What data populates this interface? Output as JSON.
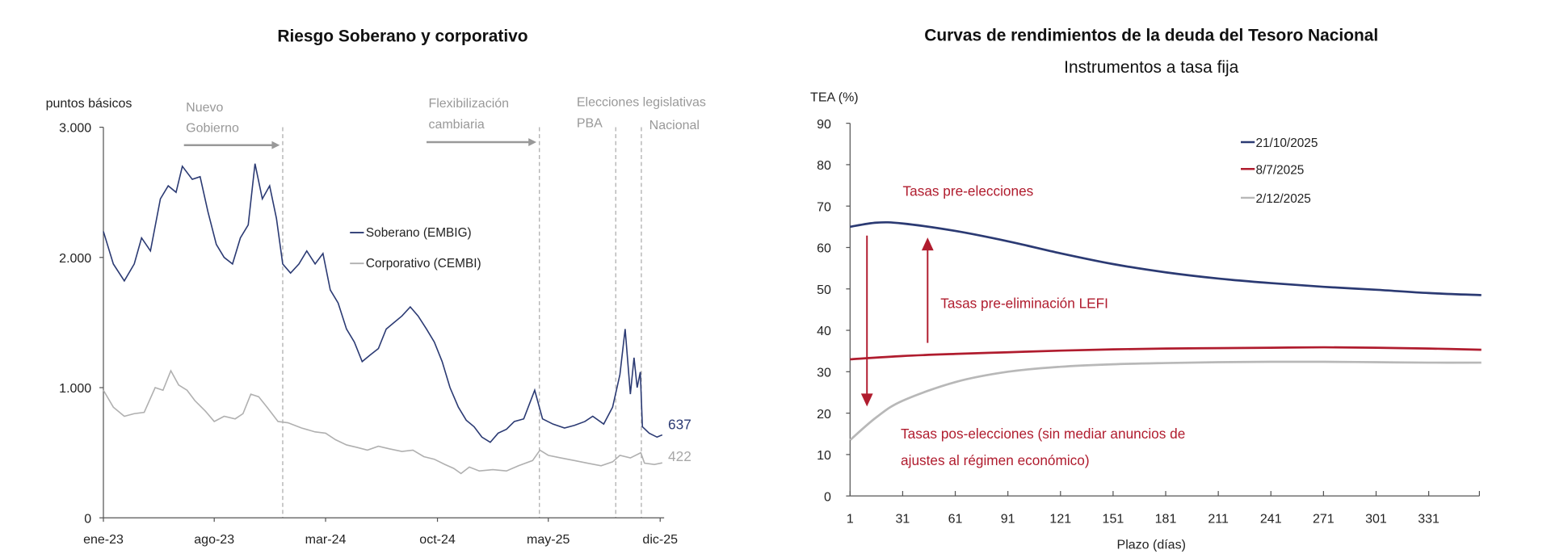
{
  "chart_data": [
    {
      "type": "line",
      "title": "Riesgo Soberano y corporativo",
      "ylabel": "puntos básicos",
      "ylim": [
        0,
        3000
      ],
      "yticks": [
        "0",
        "1.000",
        "2.000",
        "3.000"
      ],
      "ytick_values": [
        0,
        1000,
        2000,
        3000
      ],
      "xticks": [
        "ene-23",
        "ago-23",
        "mar-24",
        "oct-24",
        "may-25",
        "dic-25"
      ],
      "xtick_dates": [
        "2023-01-01",
        "2023-08-01",
        "2024-03-01",
        "2024-10-01",
        "2025-05-01",
        "2025-12-01"
      ],
      "grid": false,
      "legend": "center",
      "events": [
        {
          "lines": [
            "Nuevo",
            "Gobierno"
          ],
          "date": "2023-12-10",
          "arrow": true
        },
        {
          "lines": [
            "Flexibilización",
            "cambiaria"
          ],
          "date": "2025-04-14",
          "arrow": true
        },
        {
          "lines": [
            "Elecciones legislativas",
            "PBA"
          ],
          "date": "2025-09-07",
          "arrow": false
        },
        {
          "lines": [
            "Nacional"
          ],
          "date": "2025-10-26",
          "arrow": false
        }
      ],
      "series": [
        {
          "name": "Soberano (EMBIG)",
          "color": "#2b3a73",
          "end_label": "637",
          "points": [
            [
              "2023-01-01",
              2200
            ],
            [
              "2023-01-20",
              1950
            ],
            [
              "2023-02-10",
              1820
            ],
            [
              "2023-03-01",
              1950
            ],
            [
              "2023-03-15",
              2150
            ],
            [
              "2023-04-01",
              2050
            ],
            [
              "2023-04-20",
              2450
            ],
            [
              "2023-05-05",
              2550
            ],
            [
              "2023-05-20",
              2500
            ],
            [
              "2023-06-01",
              2700
            ],
            [
              "2023-06-20",
              2600
            ],
            [
              "2023-07-05",
              2620
            ],
            [
              "2023-07-20",
              2350
            ],
            [
              "2023-08-05",
              2100
            ],
            [
              "2023-08-20",
              2000
            ],
            [
              "2023-09-05",
              1950
            ],
            [
              "2023-09-20",
              2150
            ],
            [
              "2023-10-05",
              2250
            ],
            [
              "2023-10-18",
              2720
            ],
            [
              "2023-11-01",
              2450
            ],
            [
              "2023-11-15",
              2550
            ],
            [
              "2023-11-28",
              2300
            ],
            [
              "2023-12-10",
              1950
            ],
            [
              "2023-12-25",
              1880
            ],
            [
              "2024-01-10",
              1950
            ],
            [
              "2024-01-25",
              2050
            ],
            [
              "2024-02-10",
              1950
            ],
            [
              "2024-02-25",
              2030
            ],
            [
              "2024-03-10",
              1750
            ],
            [
              "2024-03-25",
              1650
            ],
            [
              "2024-04-10",
              1450
            ],
            [
              "2024-04-25",
              1350
            ],
            [
              "2024-05-10",
              1200
            ],
            [
              "2024-05-25",
              1250
            ],
            [
              "2024-06-10",
              1300
            ],
            [
              "2024-06-25",
              1450
            ],
            [
              "2024-07-10",
              1500
            ],
            [
              "2024-07-25",
              1550
            ],
            [
              "2024-08-10",
              1620
            ],
            [
              "2024-08-25",
              1550
            ],
            [
              "2024-09-10",
              1450
            ],
            [
              "2024-09-25",
              1350
            ],
            [
              "2024-10-10",
              1200
            ],
            [
              "2024-10-25",
              1000
            ],
            [
              "2024-11-10",
              850
            ],
            [
              "2024-11-25",
              750
            ],
            [
              "2024-12-10",
              700
            ],
            [
              "2024-12-25",
              620
            ],
            [
              "2025-01-10",
              580
            ],
            [
              "2025-01-25",
              650
            ],
            [
              "2025-02-10",
              680
            ],
            [
              "2025-02-25",
              740
            ],
            [
              "2025-03-15",
              760
            ],
            [
              "2025-04-05",
              980
            ],
            [
              "2025-04-20",
              760
            ],
            [
              "2025-05-10",
              720
            ],
            [
              "2025-06-01",
              690
            ],
            [
              "2025-06-20",
              710
            ],
            [
              "2025-07-10",
              740
            ],
            [
              "2025-07-25",
              780
            ],
            [
              "2025-08-15",
              720
            ],
            [
              "2025-09-01",
              850
            ],
            [
              "2025-09-15",
              1100
            ],
            [
              "2025-09-25",
              1450
            ],
            [
              "2025-10-05",
              950
            ],
            [
              "2025-10-12",
              1230
            ],
            [
              "2025-10-18",
              1000
            ],
            [
              "2025-10-24",
              1120
            ],
            [
              "2025-10-28",
              700
            ],
            [
              "2025-11-10",
              650
            ],
            [
              "2025-11-25",
              620
            ],
            [
              "2025-12-05",
              637
            ]
          ]
        },
        {
          "name": "Corporativo (CEMBI)",
          "color": "#b0b0b0",
          "end_label": "422",
          "points": [
            [
              "2023-01-01",
              980
            ],
            [
              "2023-01-20",
              850
            ],
            [
              "2023-02-10",
              780
            ],
            [
              "2023-03-01",
              800
            ],
            [
              "2023-03-20",
              810
            ],
            [
              "2023-04-10",
              1000
            ],
            [
              "2023-04-25",
              980
            ],
            [
              "2023-05-10",
              1130
            ],
            [
              "2023-05-25",
              1020
            ],
            [
              "2023-06-10",
              980
            ],
            [
              "2023-06-25",
              900
            ],
            [
              "2023-07-15",
              820
            ],
            [
              "2023-08-01",
              740
            ],
            [
              "2023-08-20",
              780
            ],
            [
              "2023-09-10",
              760
            ],
            [
              "2023-09-25",
              800
            ],
            [
              "2023-10-10",
              950
            ],
            [
              "2023-10-25",
              930
            ],
            [
              "2023-11-10",
              850
            ],
            [
              "2023-12-01",
              740
            ],
            [
              "2023-12-20",
              730
            ],
            [
              "2024-01-15",
              690
            ],
            [
              "2024-02-10",
              660
            ],
            [
              "2024-03-01",
              650
            ],
            [
              "2024-03-20",
              600
            ],
            [
              "2024-04-10",
              560
            ],
            [
              "2024-05-01",
              540
            ],
            [
              "2024-05-20",
              520
            ],
            [
              "2024-06-10",
              550
            ],
            [
              "2024-07-01",
              530
            ],
            [
              "2024-07-25",
              510
            ],
            [
              "2024-08-15",
              520
            ],
            [
              "2024-09-05",
              470
            ],
            [
              "2024-09-25",
              450
            ],
            [
              "2024-10-15",
              410
            ],
            [
              "2024-11-01",
              380
            ],
            [
              "2024-11-15",
              340
            ],
            [
              "2024-12-01",
              390
            ],
            [
              "2024-12-20",
              360
            ],
            [
              "2025-01-15",
              370
            ],
            [
              "2025-02-10",
              360
            ],
            [
              "2025-03-05",
              400
            ],
            [
              "2025-04-01",
              440
            ],
            [
              "2025-04-15",
              520
            ],
            [
              "2025-05-01",
              480
            ],
            [
              "2025-05-25",
              460
            ],
            [
              "2025-06-20",
              440
            ],
            [
              "2025-07-15",
              420
            ],
            [
              "2025-08-10",
              400
            ],
            [
              "2025-09-01",
              430
            ],
            [
              "2025-09-15",
              480
            ],
            [
              "2025-10-05",
              460
            ],
            [
              "2025-10-25",
              500
            ],
            [
              "2025-11-01",
              420
            ],
            [
              "2025-11-20",
              410
            ],
            [
              "2025-12-05",
              422
            ]
          ]
        }
      ]
    },
    {
      "type": "line",
      "title": "Curvas de rendimientos de la deuda del Tesoro Nacional",
      "subtitle": "Instrumentos a tasa fija",
      "ylabel": "TEA (%)",
      "xlabel": "Plazo (días)",
      "ylim": [
        0,
        90
      ],
      "xlim": [
        1,
        361
      ],
      "yticks": [
        0,
        10,
        20,
        30,
        40,
        50,
        60,
        70,
        80,
        90
      ],
      "xticks": [
        1,
        31,
        61,
        91,
        121,
        151,
        181,
        211,
        241,
        271,
        301,
        331
      ],
      "grid": false,
      "legend": "top-right",
      "annotations": {
        "pre_elecciones": "Tasas pre-elecciones",
        "pre_lefi": "Tasas pre-eliminación LEFI",
        "pos_line1": "Tasas pos-elecciones (sin mediar anuncios de",
        "pos_line2": "ajustes al régimen económico)",
        "annotation_color": "#b01c2e"
      },
      "series": [
        {
          "name": "21/10/2025",
          "color": "#2b3a73",
          "x": [
            1,
            16,
            31,
            61,
            91,
            121,
            151,
            181,
            211,
            241,
            271,
            301,
            331,
            361
          ],
          "y": [
            65,
            66,
            65.8,
            64,
            61.5,
            58.6,
            56,
            54,
            52.5,
            51.4,
            50.5,
            49.8,
            49,
            48.5
          ]
        },
        {
          "name": "8/7/2025",
          "color": "#b01c2e",
          "x": [
            1,
            31,
            61,
            91,
            121,
            151,
            181,
            211,
            241,
            271,
            301,
            331,
            361
          ],
          "y": [
            33,
            33.8,
            34.3,
            34.7,
            35.1,
            35.4,
            35.6,
            35.7,
            35.8,
            35.9,
            35.8,
            35.6,
            35.3
          ]
        },
        {
          "name": "2/12/2025",
          "color": "#b8b8b8",
          "x": [
            1,
            16,
            31,
            61,
            91,
            121,
            151,
            181,
            211,
            241,
            271,
            301,
            331,
            361
          ],
          "y": [
            13.5,
            19,
            23,
            27.5,
            30,
            31.2,
            31.8,
            32.1,
            32.3,
            32.4,
            32.4,
            32.3,
            32.2,
            32.2
          ]
        }
      ]
    }
  ]
}
